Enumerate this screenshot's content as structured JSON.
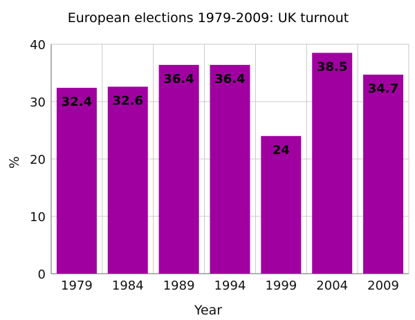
{
  "chart_data": {
    "type": "bar",
    "title": "European elections 1979-2009: UK turnout",
    "xlabel": "Year",
    "ylabel": "%",
    "categories": [
      "1979",
      "1984",
      "1989",
      "1994",
      "1999",
      "2004",
      "2009"
    ],
    "values": [
      32.4,
      32.6,
      36.4,
      36.4,
      24,
      38.5,
      34.7
    ],
    "data_labels": [
      "32.4",
      "32.6",
      "36.4",
      "36.4",
      "24",
      "38.5",
      "34.7"
    ],
    "ylim": [
      0,
      40
    ],
    "yticks": [
      "0",
      "10",
      "20",
      "30",
      "40"
    ],
    "grid": true,
    "legend": "none",
    "bar_color": "#a000a0"
  }
}
